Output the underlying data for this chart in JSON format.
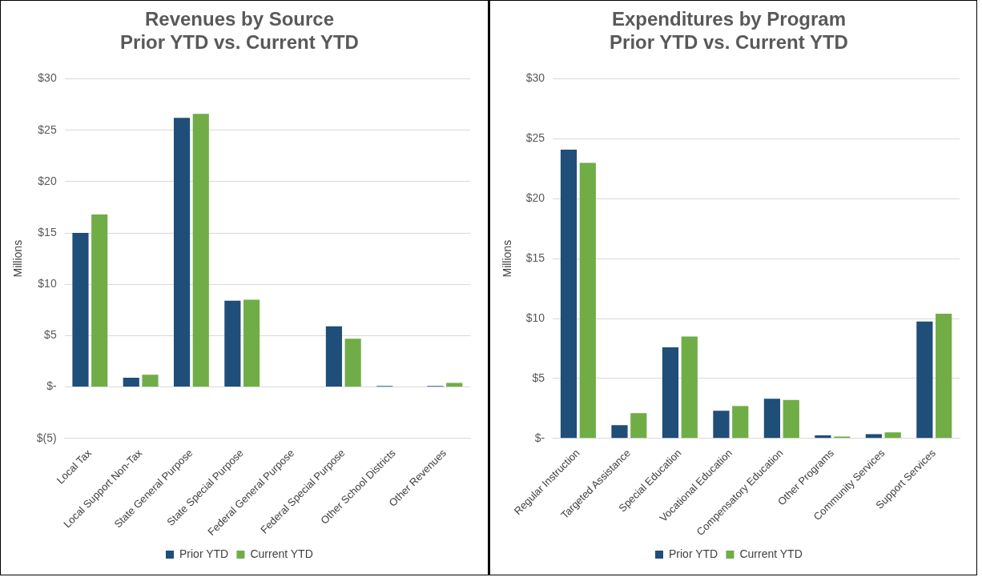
{
  "chart_data": [
    {
      "type": "bar",
      "title": "Revenues by Source\nPrior YTD vs. Current YTD",
      "ylabel": "Millions",
      "categories": [
        "Local Tax",
        "Local Support Non-Tax",
        "State General Purpose",
        "State Special Purpose",
        "Federal General Purpose",
        "Federal Special Purpose",
        "Other School Districts",
        "Other Revenues"
      ],
      "series": [
        {
          "name": "Prior YTD",
          "color": "#1f4e79",
          "values": [
            15,
            0.9,
            26.2,
            8.4,
            0,
            5.9,
            0.1,
            0.1
          ]
        },
        {
          "name": "Current YTD",
          "color": "#70ad47",
          "values": [
            16.8,
            1.2,
            26.6,
            8.5,
            0,
            4.7,
            0,
            0.4
          ]
        }
      ],
      "ylim": [
        -5,
        30
      ],
      "yticks": [
        {
          "value": -5,
          "label": "$(5)"
        },
        {
          "value": 0,
          "label": "$-"
        },
        {
          "value": 5,
          "label": "$5"
        },
        {
          "value": 10,
          "label": "$10"
        },
        {
          "value": 15,
          "label": "$15"
        },
        {
          "value": 20,
          "label": "$20"
        },
        {
          "value": 25,
          "label": "$25"
        },
        {
          "value": 30,
          "label": "$30"
        }
      ],
      "grid": "y",
      "legend": "bottom"
    },
    {
      "type": "bar",
      "title": "Expenditures by Program\nPrior YTD vs. Current YTD",
      "ylabel": "Millions",
      "categories": [
        "Regular Instruction",
        "Targeted Assistance",
        "Special Education",
        "Vocational Education",
        "Compensatory Education",
        "Other Programs",
        "Community Services",
        "Support Services"
      ],
      "series": [
        {
          "name": "Prior YTD",
          "color": "#1f4e79",
          "values": [
            24.1,
            1.1,
            7.6,
            2.3,
            3.3,
            0.25,
            0.35,
            9.75
          ]
        },
        {
          "name": "Current YTD",
          "color": "#70ad47",
          "values": [
            23,
            2.1,
            8.5,
            2.7,
            3.2,
            0.15,
            0.5,
            10.4
          ]
        }
      ],
      "ylim": [
        0,
        30
      ],
      "yticks": [
        {
          "value": 0,
          "label": "$-"
        },
        {
          "value": 5,
          "label": "$5"
        },
        {
          "value": 10,
          "label": "$10"
        },
        {
          "value": 15,
          "label": "$15"
        },
        {
          "value": 20,
          "label": "$20"
        },
        {
          "value": 25,
          "label": "$25"
        },
        {
          "value": 30,
          "label": "$30"
        }
      ],
      "grid": "y",
      "legend": "bottom"
    }
  ]
}
